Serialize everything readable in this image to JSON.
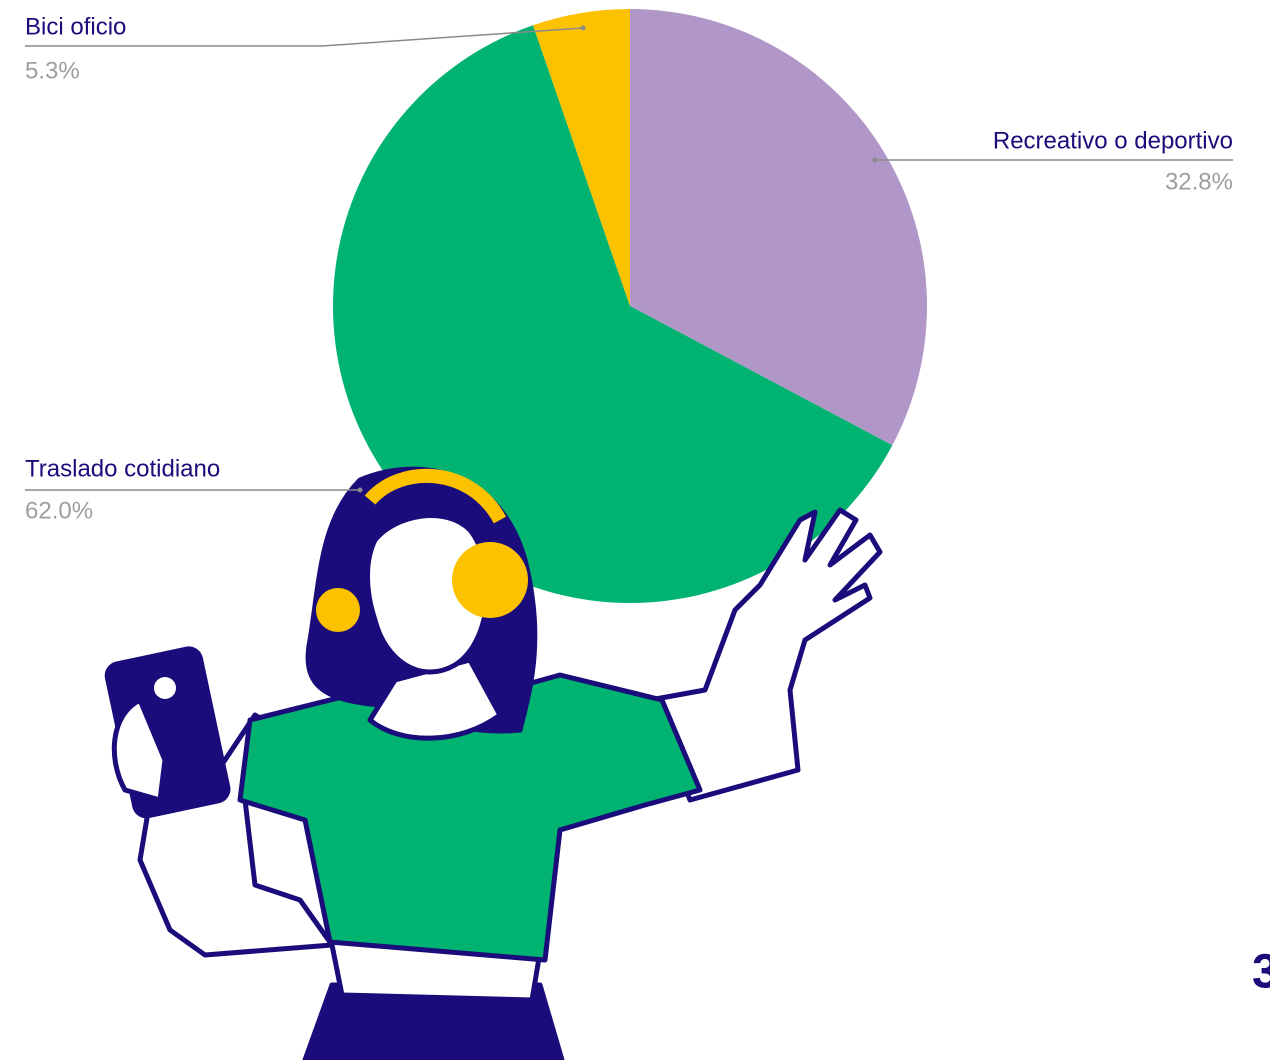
{
  "chart_data": {
    "type": "pie",
    "categories": [
      "Recreativo o deportivo",
      "Traslado cotidiano",
      "Bici oficio"
    ],
    "values": [
      32.8,
      62.0,
      5.3
    ],
    "value_labels": [
      "32.8%",
      "62.0%",
      "5.3%"
    ],
    "colors": [
      "#b097c8",
      "#00b371",
      "#fcc200"
    ]
  },
  "page_number": "3"
}
